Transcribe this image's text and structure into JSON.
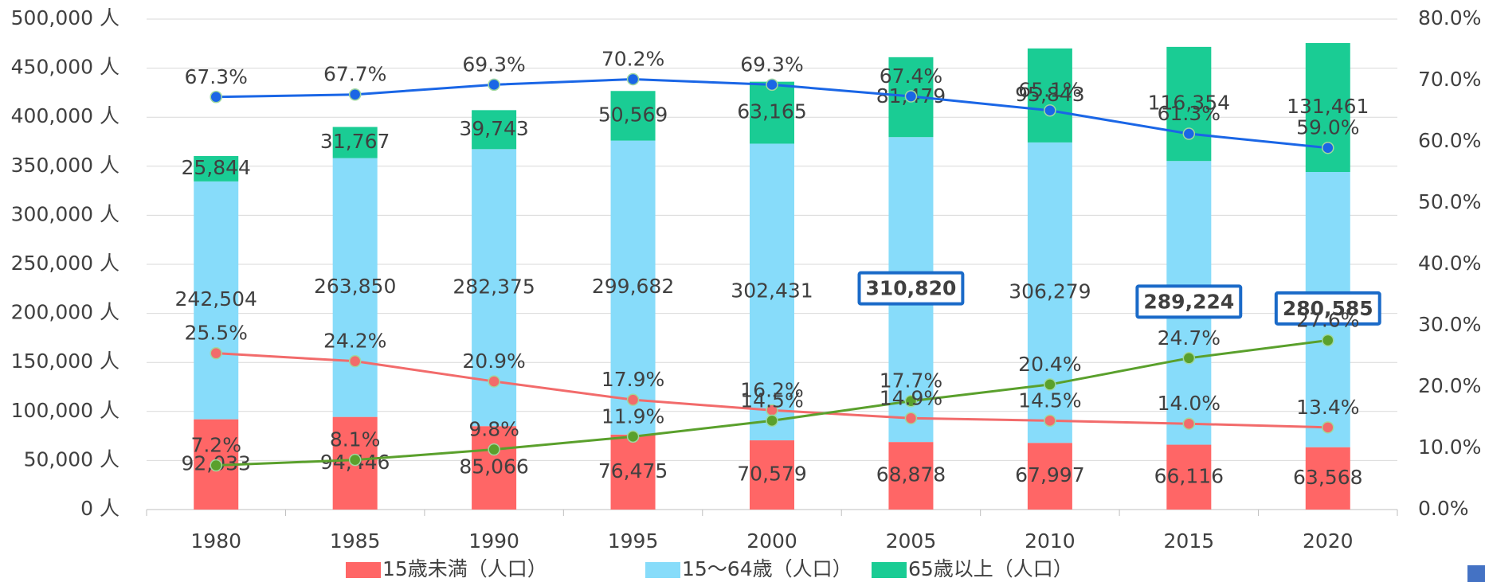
{
  "chart_data": {
    "type": "bar",
    "categories": [
      "1980",
      "1985",
      "1990",
      "1995",
      "2000",
      "2005",
      "2010",
      "2015",
      "2020"
    ],
    "series": [
      {
        "name": "15歳未満（人口）",
        "color": "#ff6666",
        "label_color": "#e60000",
        "values": [
          92033,
          94446,
          85066,
          76475,
          70579,
          68878,
          67997,
          66116,
          63568
        ],
        "value_labels": [
          "92,033",
          "94,446",
          "85,066",
          "76,475",
          "70,579",
          "68,878",
          "67,997",
          "66,116",
          "63,568"
        ]
      },
      {
        "name": "15～64歳（人口）",
        "color": "#87dcfa",
        "label_color": "#1f4e9a",
        "values": [
          242504,
          263850,
          282375,
          299682,
          302431,
          310820,
          306279,
          289224,
          280585
        ],
        "value_labels": [
          "242,504",
          "263,850",
          "282,375",
          "299,682",
          "302,431",
          "310,820",
          "306,279",
          "289,224",
          "280,585"
        ],
        "boxed_labels": [
          5,
          7,
          8
        ]
      },
      {
        "name": "65歳以上（人口）",
        "color": "#1acc94",
        "label_color": "#1e6b3a",
        "values": [
          25844,
          31767,
          39743,
          50569,
          63165,
          81479,
          95843,
          116354,
          131461
        ],
        "value_labels": [
          "25,844",
          "31,767",
          "39,743",
          "50,569",
          "63,165",
          "81,479",
          "95,843",
          "116,354",
          "131,461"
        ]
      },
      {
        "type": "line",
        "axis": "y2",
        "color": "#1a66e6",
        "label_color": "#1f6fc0",
        "values": [
          67.3,
          67.7,
          69.3,
          70.2,
          69.3,
          67.4,
          65.1,
          61.3,
          59.0
        ],
        "value_labels": [
          "67.3%",
          "67.7%",
          "69.3%",
          "70.2%",
          "69.3%",
          "67.4%",
          "65.1%",
          "61.3%",
          "59.0%"
        ]
      },
      {
        "type": "line",
        "axis": "y2",
        "color": "#f26b6b",
        "label_color": "#ff0000",
        "values": [
          25.5,
          24.2,
          20.9,
          17.9,
          16.2,
          14.9,
          14.5,
          14.0,
          13.4
        ],
        "value_labels": [
          "25.5%",
          "24.2%",
          "20.9%",
          "17.9%",
          "16.2%",
          "14.9%",
          "14.5%",
          "14.0%",
          "13.4%"
        ]
      },
      {
        "type": "line",
        "axis": "y2",
        "color": "#5aa02c",
        "label_color": "#1e9a6a",
        "values": [
          7.2,
          8.1,
          9.8,
          11.9,
          14.5,
          17.7,
          20.4,
          24.7,
          27.6
        ],
        "value_labels": [
          "7.2%",
          "8.1%",
          "9.8%",
          "11.9%",
          "14.5%",
          "17.7%",
          "20.4%",
          "24.7%",
          "27.6%"
        ]
      }
    ],
    "ylim": [
      0,
      500000
    ],
    "yticks": [
      {
        "value": 0,
        "label": "0 人"
      },
      {
        "value": 50000,
        "label": "50,000 人"
      },
      {
        "value": 100000,
        "label": "100,000 人"
      },
      {
        "value": 150000,
        "label": "150,000 人"
      },
      {
        "value": 200000,
        "label": "200,000 人"
      },
      {
        "value": 250000,
        "label": "250,000 人"
      },
      {
        "value": 300000,
        "label": "300,000 人"
      },
      {
        "value": 350000,
        "label": "350,000 人"
      },
      {
        "value": 400000,
        "label": "400,000 人"
      },
      {
        "value": 450000,
        "label": "450,000 人"
      },
      {
        "value": 500000,
        "label": "500,000 人"
      }
    ],
    "y2lim": [
      0,
      80
    ],
    "y2ticks": [
      {
        "value": 0,
        "label": "0.0%"
      },
      {
        "value": 10,
        "label": "10.0%"
      },
      {
        "value": 20,
        "label": "20.0%"
      },
      {
        "value": 30,
        "label": "30.0%"
      },
      {
        "value": 40,
        "label": "40.0%"
      },
      {
        "value": 50,
        "label": "50.0%"
      },
      {
        "value": 60,
        "label": "60.0%"
      },
      {
        "value": 70,
        "label": "70.0%"
      },
      {
        "value": 80,
        "label": "80.0%"
      }
    ],
    "grid": true,
    "legend": "bottom"
  }
}
